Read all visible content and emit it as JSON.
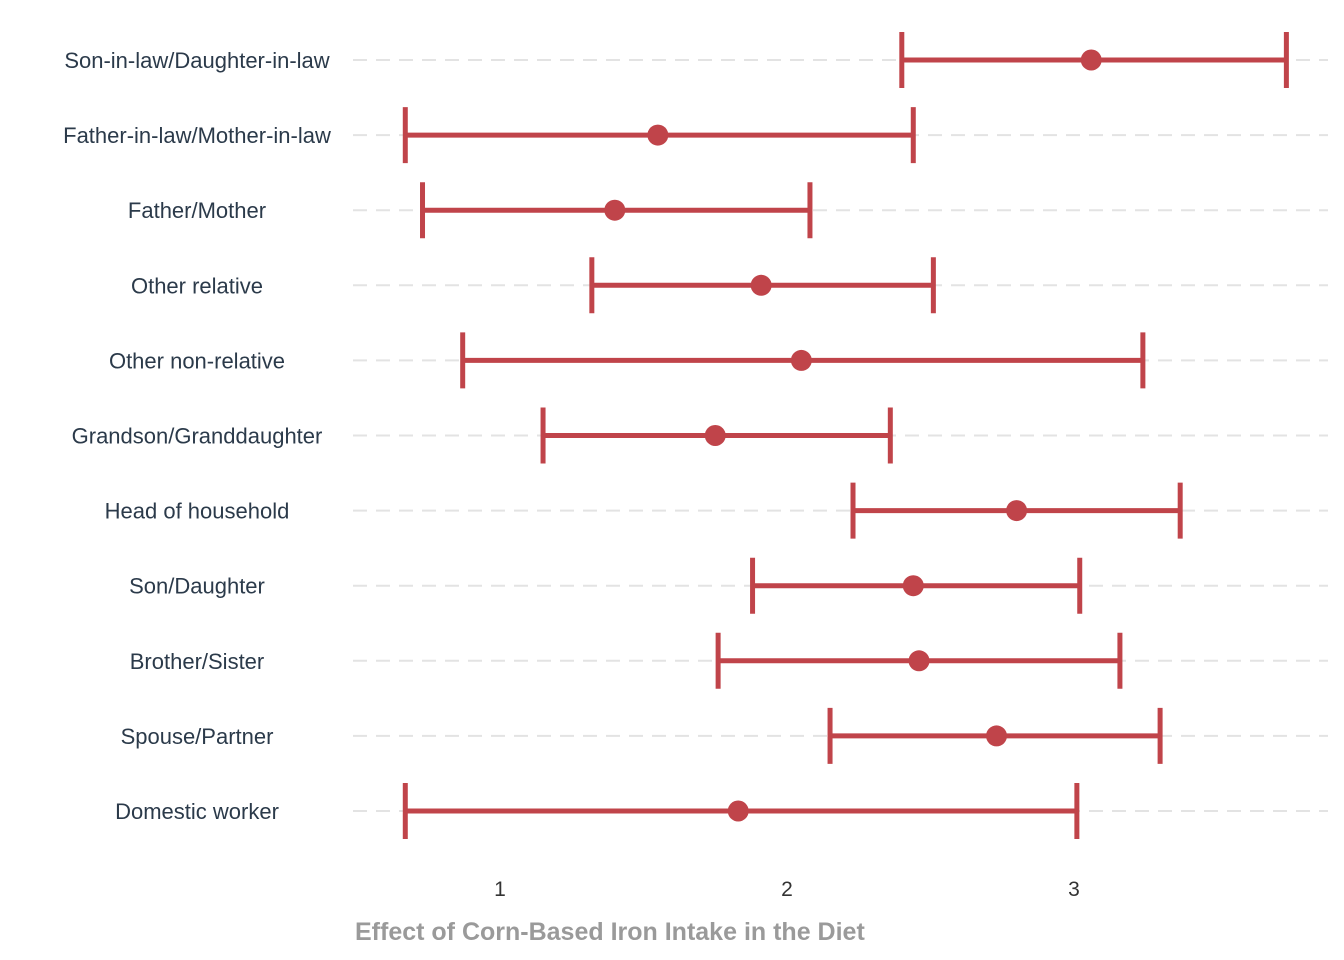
{
  "chart_data": {
    "type": "forest",
    "title": "",
    "xlabel": "Effect of Corn-Based Iron Intake in the Diet",
    "ylabel": "",
    "xlim": [
      0.5,
      3.9
    ],
    "xticks": [
      1,
      2,
      3
    ],
    "grid": "horizontal-dashed",
    "colors": {
      "mark": "#c0444a",
      "grid": "#e3e3e3"
    },
    "categories": [
      "Son-in-law/Daughter-in-law",
      "Father-in-law/Mother-in-law",
      "Father/Mother",
      "Other relative",
      "Other non-relative",
      "Grandson/Granddaughter",
      "Head of household",
      "Son/Daughter",
      "Brother/Sister",
      "Spouse/Partner",
      "Domestic worker"
    ],
    "estimate": [
      3.06,
      1.55,
      1.4,
      1.91,
      2.05,
      1.75,
      2.8,
      2.44,
      2.46,
      2.73,
      1.83
    ],
    "lower": [
      2.4,
      0.67,
      0.73,
      1.32,
      0.87,
      1.15,
      2.23,
      1.88,
      1.76,
      2.15,
      0.67
    ],
    "upper": [
      3.74,
      2.44,
      2.08,
      2.51,
      3.24,
      2.36,
      3.37,
      3.02,
      3.16,
      3.3,
      3.01
    ]
  }
}
